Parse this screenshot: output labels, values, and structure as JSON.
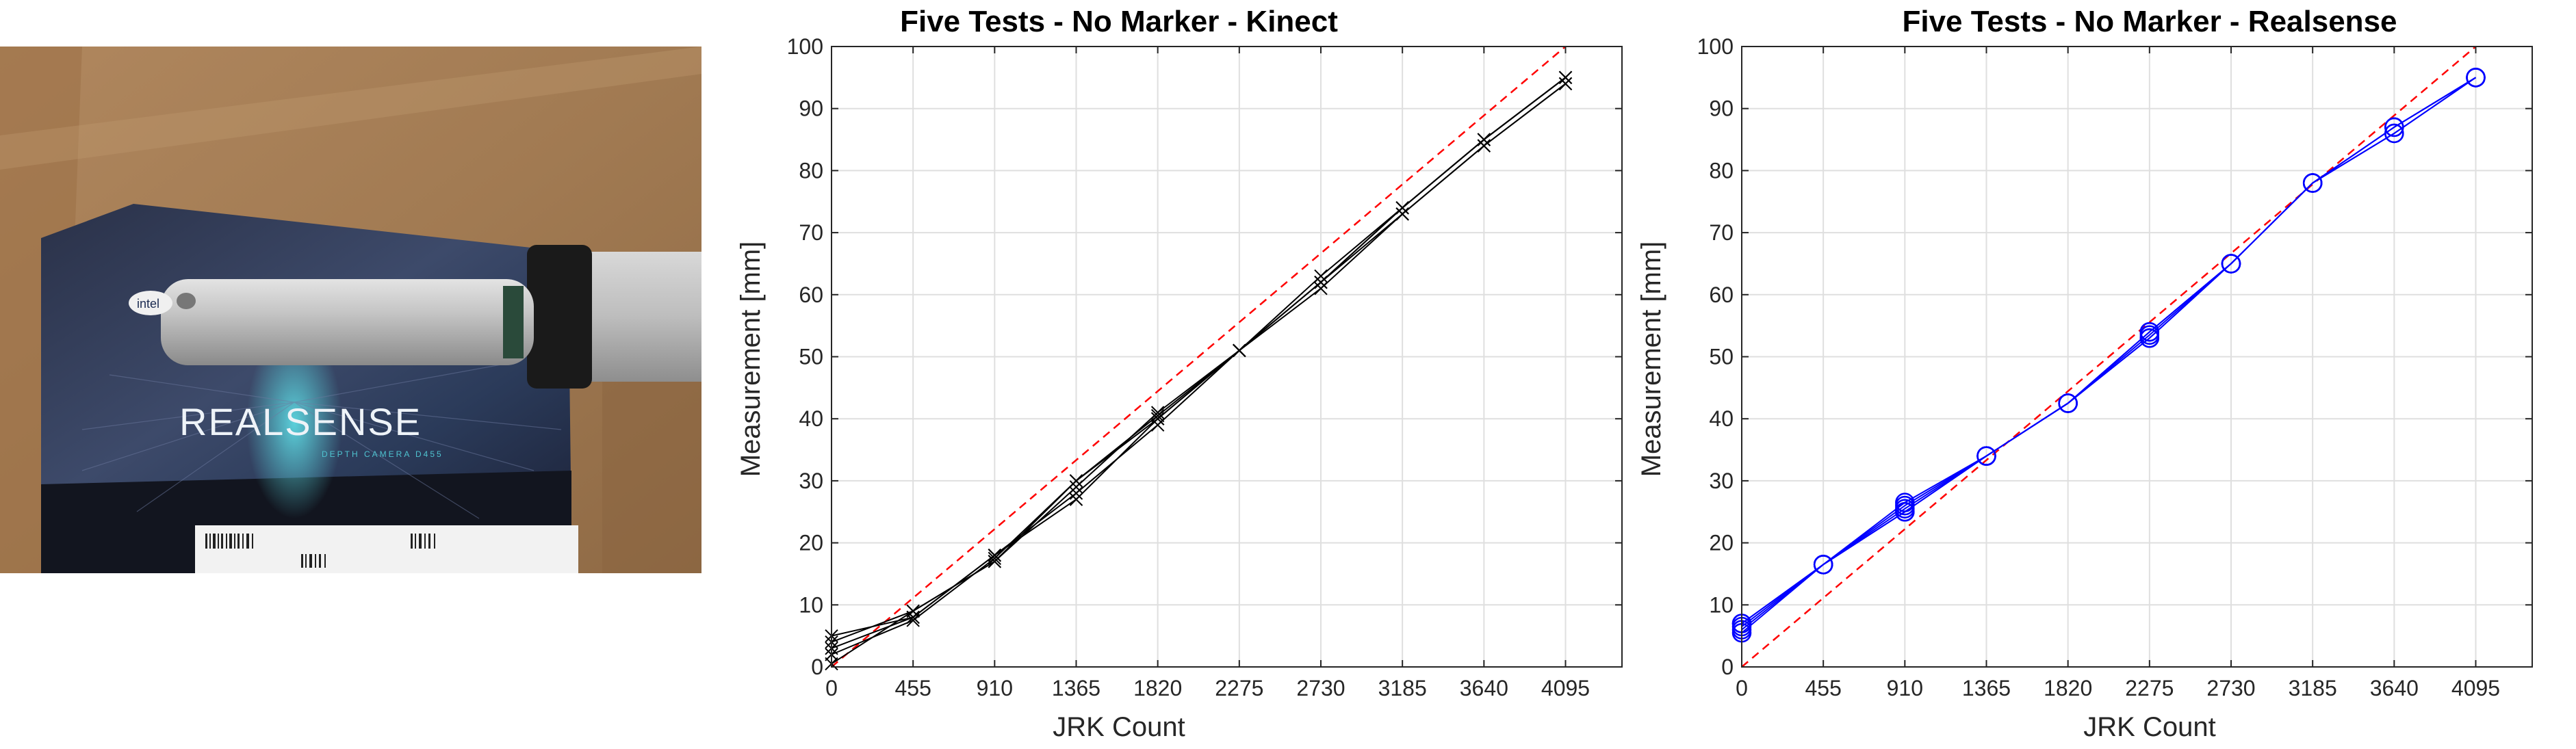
{
  "photo": {
    "box_brand": "REALSENSE",
    "box_subtitle": "DEPTH CAMERA D455",
    "logo_text": "intel"
  },
  "chart_data": [
    {
      "type": "line",
      "title": "Five Tests - No Marker - Kinect",
      "xlabel": "JRK Count",
      "ylabel": "Measurement [mm]",
      "x": [
        0,
        455,
        910,
        1365,
        1820,
        2275,
        2730,
        3185,
        3640,
        4095
      ],
      "xticks": [
        "0",
        "455",
        "910",
        "1365",
        "1820",
        "2275",
        "2730",
        "3185",
        "3640",
        "4095"
      ],
      "xlim": [
        0,
        4410
      ],
      "ylim": [
        0,
        100
      ],
      "yticks": [
        "0",
        "10",
        "20",
        "30",
        "40",
        "50",
        "60",
        "70",
        "80",
        "90",
        "100"
      ],
      "grid": true,
      "marker": "x",
      "color": "#000000",
      "reference_line": {
        "x": [
          0,
          4095
        ],
        "y": [
          0,
          100
        ],
        "color": "#ff0000",
        "style": "dashed"
      },
      "series": [
        {
          "values": [
            0.5,
            9,
            17,
            30,
            40,
            51,
            62,
            74,
            85,
            95
          ]
        },
        {
          "values": [
            3,
            8,
            18,
            27,
            40,
            51,
            61,
            73,
            84,
            94
          ]
        },
        {
          "values": [
            4,
            9,
            17,
            29,
            41,
            51,
            63,
            74,
            85,
            95
          ]
        },
        {
          "values": [
            5,
            8,
            18,
            28,
            39,
            51,
            62,
            73,
            84,
            94
          ]
        },
        {
          "values": [
            2,
            7.5,
            17.5,
            30,
            40.5,
            51,
            62,
            74,
            85,
            95
          ]
        }
      ]
    },
    {
      "type": "line",
      "title": "Five Tests - No Marker - Realsense",
      "xlabel": "JRK Count",
      "ylabel": "Measurement [mm]",
      "x": [
        0,
        455,
        910,
        1365,
        1820,
        2275,
        2730,
        3185,
        3640,
        4095
      ],
      "xticks": [
        "0",
        "455",
        "910",
        "1365",
        "1820",
        "2275",
        "2730",
        "3185",
        "3640",
        "4095"
      ],
      "xlim": [
        0,
        4410
      ],
      "ylim": [
        0,
        100
      ],
      "yticks": [
        "0",
        "10",
        "20",
        "30",
        "40",
        "50",
        "60",
        "70",
        "80",
        "90",
        "100"
      ],
      "grid": true,
      "marker": "o",
      "color": "#0000ff",
      "reference_line": {
        "x": [
          0,
          4095
        ],
        "y": [
          0,
          100
        ],
        "color": "#ff0000",
        "style": "dashed"
      },
      "series": [
        {
          "values": [
            7,
            16.5,
            25,
            34,
            42.5,
            54,
            65,
            78,
            87,
            95
          ]
        },
        {
          "values": [
            6,
            16.5,
            26.5,
            34,
            42.5,
            53,
            65,
            78,
            86,
            95
          ]
        },
        {
          "values": [
            6.5,
            16.5,
            25.5,
            34,
            42.5,
            53.5,
            65,
            78,
            87,
            95
          ]
        },
        {
          "values": [
            5.5,
            16.5,
            25,
            34,
            42.5,
            53,
            65,
            78,
            86,
            95
          ]
        },
        {
          "values": [
            7,
            16.5,
            26,
            34,
            42.5,
            54,
            65,
            78,
            87,
            95
          ]
        }
      ]
    }
  ]
}
